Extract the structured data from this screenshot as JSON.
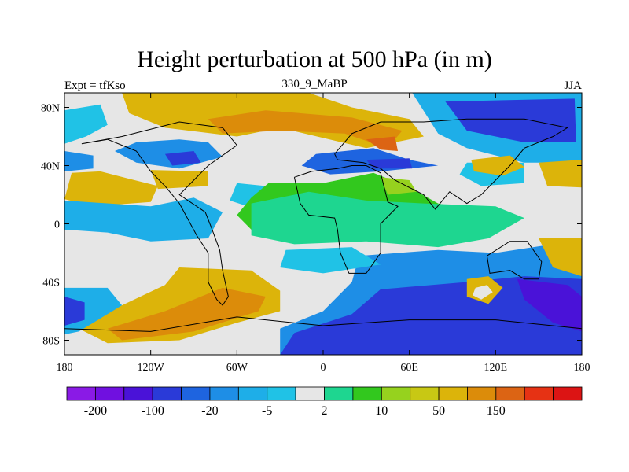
{
  "title": "Height perturbation at 500 hPa (in m)",
  "left_subtitle": "Expt = tfKso",
  "center_subtitle": "330_9_MaBP",
  "right_subtitle": "JJA",
  "lat_ticks": [
    {
      "value": 80,
      "label": "80N"
    },
    {
      "value": 40,
      "label": "40N"
    },
    {
      "value": 0,
      "label": "0"
    },
    {
      "value": -40,
      "label": "40S"
    },
    {
      "value": -80,
      "label": "80S"
    }
  ],
  "lon_ticks": [
    {
      "value": -180,
      "label": "180"
    },
    {
      "value": -120,
      "label": "120W"
    },
    {
      "value": -60,
      "label": "60W"
    },
    {
      "value": 0,
      "label": "0"
    },
    {
      "value": 60,
      "label": "60E"
    },
    {
      "value": 120,
      "label": "120E"
    },
    {
      "value": 180,
      "label": "180"
    }
  ],
  "colorbar": {
    "colors": [
      "#8a1ae6",
      "#7010e0",
      "#4a12d8",
      "#2a3ad8",
      "#1e64e0",
      "#1e8ee6",
      "#1eaee8",
      "#20c2e6",
      "#e6e6e6",
      "#1ed690",
      "#32c81e",
      "#96d21e",
      "#c8c814",
      "#dcb40a",
      "#dc8c0a",
      "#dc6414",
      "#e63214",
      "#dc1414"
    ],
    "labels": [
      "-200",
      "-100",
      "-20",
      "-5",
      "2",
      "10",
      "50",
      "150"
    ]
  },
  "map_data": {
    "lon_range": [
      -180,
      180
    ],
    "lat_range": [
      -90,
      90
    ],
    "regions": [
      {
        "color": "#e6e6e6",
        "points": [
          [
            -180,
            90
          ],
          [
            180,
            90
          ],
          [
            180,
            -90
          ],
          [
            -180,
            -90
          ]
        ]
      },
      {
        "color": "#20c2e6",
        "points": [
          [
            -180,
            78
          ],
          [
            -155,
            82
          ],
          [
            -150,
            68
          ],
          [
            -165,
            60
          ],
          [
            -180,
            55
          ]
        ]
      },
      {
        "color": "#dcb40a",
        "points": [
          [
            -140,
            90
          ],
          [
            -10,
            90
          ],
          [
            20,
            80
          ],
          [
            60,
            72
          ],
          [
            70,
            60
          ],
          [
            30,
            52
          ],
          [
            -30,
            66
          ],
          [
            -60,
            60
          ],
          [
            -110,
            66
          ],
          [
            -135,
            76
          ]
        ]
      },
      {
        "color": "#dc8c0a",
        "points": [
          [
            -80,
            72
          ],
          [
            -40,
            78
          ],
          [
            20,
            73
          ],
          [
            55,
            64
          ],
          [
            45,
            52
          ],
          [
            15,
            62
          ],
          [
            -30,
            64
          ],
          [
            -70,
            62
          ]
        ]
      },
      {
        "color": "#dc6414",
        "points": [
          [
            30,
            58
          ],
          [
            50,
            60
          ],
          [
            52,
            50
          ],
          [
            40,
            51
          ]
        ]
      },
      {
        "color": "#1e8ee6",
        "points": [
          [
            -130,
            56
          ],
          [
            -100,
            58
          ],
          [
            -80,
            56
          ],
          [
            -70,
            46
          ],
          [
            -100,
            38
          ],
          [
            -130,
            42
          ],
          [
            -145,
            50
          ]
        ]
      },
      {
        "color": "#2a3ad8",
        "points": [
          [
            -110,
            48
          ],
          [
            -90,
            50
          ],
          [
            -85,
            42
          ],
          [
            -105,
            40
          ]
        ]
      },
      {
        "color": "#1e8ee6",
        "points": [
          [
            -180,
            50
          ],
          [
            -160,
            47
          ],
          [
            -160,
            38
          ],
          [
            -180,
            36
          ]
        ]
      },
      {
        "color": "#1eaee8",
        "points": [
          [
            62,
            90
          ],
          [
            180,
            90
          ],
          [
            180,
            42
          ],
          [
            140,
            42
          ],
          [
            100,
            52
          ],
          [
            80,
            62
          ]
        ]
      },
      {
        "color": "#2a3ad8",
        "points": [
          [
            85,
            84
          ],
          [
            175,
            86
          ],
          [
            176,
            56
          ],
          [
            140,
            56
          ],
          [
            100,
            64
          ]
        ]
      },
      {
        "color": "#20c2e6",
        "points": [
          [
            100,
            42
          ],
          [
            140,
            42
          ],
          [
            140,
            28
          ],
          [
            110,
            26
          ],
          [
            95,
            34
          ]
        ]
      },
      {
        "color": "#dcb40a",
        "points": [
          [
            103,
            44
          ],
          [
            130,
            47
          ],
          [
            140,
            39
          ],
          [
            125,
            33
          ],
          [
            105,
            36
          ]
        ]
      },
      {
        "color": "#dcb40a",
        "points": [
          [
            150,
            42
          ],
          [
            180,
            44
          ],
          [
            180,
            25
          ],
          [
            156,
            26
          ]
        ]
      },
      {
        "color": "#dcb40a",
        "points": [
          [
            -175,
            35
          ],
          [
            -155,
            36
          ],
          [
            -135,
            31
          ],
          [
            -115,
            26
          ],
          [
            -120,
            15
          ],
          [
            -160,
            12
          ],
          [
            -180,
            17
          ]
        ]
      },
      {
        "color": "#dcb40a",
        "points": [
          [
            -120,
            37
          ],
          [
            -80,
            36
          ],
          [
            -80,
            26
          ],
          [
            -115,
            24
          ]
        ]
      },
      {
        "color": "#1eaee8",
        "points": [
          [
            -180,
            16
          ],
          [
            -120,
            12
          ],
          [
            -90,
            18
          ],
          [
            -70,
            8
          ],
          [
            -80,
            -10
          ],
          [
            -120,
            -12
          ],
          [
            -150,
            -6
          ],
          [
            -180,
            -4
          ]
        ]
      },
      {
        "color": "#20c2e6",
        "points": [
          [
            -60,
            28
          ],
          [
            -30,
            25
          ],
          [
            -20,
            12
          ],
          [
            -40,
            8
          ],
          [
            -65,
            16
          ]
        ]
      },
      {
        "color": "#32c81e",
        "points": [
          [
            -38,
            28
          ],
          [
            0,
            28
          ],
          [
            35,
            35
          ],
          [
            60,
            25
          ],
          [
            80,
            14
          ],
          [
            100,
            10
          ],
          [
            110,
            0
          ],
          [
            80,
            -8
          ],
          [
            50,
            -10
          ],
          [
            20,
            -2
          ],
          [
            -18,
            -6
          ],
          [
            -50,
            -4
          ],
          [
            -60,
            6
          ],
          [
            -50,
            18
          ]
        ]
      },
      {
        "color": "#1ed690",
        "points": [
          [
            -50,
            14
          ],
          [
            -10,
            22
          ],
          [
            30,
            16
          ],
          [
            70,
            14
          ],
          [
            120,
            12
          ],
          [
            140,
            4
          ],
          [
            115,
            -10
          ],
          [
            80,
            -16
          ],
          [
            30,
            -12
          ],
          [
            -20,
            -14
          ],
          [
            -50,
            -8
          ]
        ]
      },
      {
        "color": "#96d21e",
        "points": [
          [
            40,
            32
          ],
          [
            60,
            30
          ],
          [
            65,
            22
          ],
          [
            45,
            20
          ]
        ]
      },
      {
        "color": "#1e64e0",
        "points": [
          [
            -5,
            48
          ],
          [
            35,
            52
          ],
          [
            60,
            44
          ],
          [
            80,
            40
          ],
          [
            40,
            36
          ],
          [
            5,
            34
          ],
          [
            -15,
            40
          ]
        ]
      },
      {
        "color": "#2a3ad8",
        "points": [
          [
            30,
            44
          ],
          [
            60,
            45
          ],
          [
            62,
            38
          ],
          [
            35,
            38
          ]
        ]
      },
      {
        "color": "#1e8ee6",
        "points": [
          [
            25,
            -22
          ],
          [
            80,
            -18
          ],
          [
            120,
            -20
          ],
          [
            160,
            -14
          ],
          [
            180,
            -14
          ],
          [
            180,
            -90
          ],
          [
            -30,
            -90
          ],
          [
            -30,
            -72
          ],
          [
            0,
            -60
          ],
          [
            20,
            -40
          ]
        ]
      },
      {
        "color": "#2a3ad8",
        "points": [
          [
            40,
            -45
          ],
          [
            100,
            -40
          ],
          [
            140,
            -36
          ],
          [
            180,
            -38
          ],
          [
            180,
            -90
          ],
          [
            -30,
            -90
          ],
          [
            -20,
            -75
          ],
          [
            20,
            -62
          ]
        ]
      },
      {
        "color": "#4a12d8",
        "points": [
          [
            135,
            -38
          ],
          [
            170,
            -42
          ],
          [
            180,
            -50
          ],
          [
            180,
            -74
          ],
          [
            160,
            -68
          ],
          [
            140,
            -52
          ]
        ]
      },
      {
        "color": "#dcb40a",
        "points": [
          [
            100,
            -38
          ],
          [
            115,
            -36
          ],
          [
            125,
            -44
          ],
          [
            115,
            -55
          ],
          [
            100,
            -50
          ]
        ]
      },
      {
        "color": "#e6e6e6",
        "points": [
          [
            106,
            -44
          ],
          [
            114,
            -42
          ],
          [
            118,
            -47
          ],
          [
            110,
            -52
          ],
          [
            104,
            -49
          ]
        ]
      },
      {
        "color": "#dcb40a",
        "points": [
          [
            -100,
            -30
          ],
          [
            -50,
            -32
          ],
          [
            -30,
            -46
          ],
          [
            -30,
            -60
          ],
          [
            -60,
            -68
          ],
          [
            -100,
            -80
          ],
          [
            -150,
            -82
          ],
          [
            -170,
            -72
          ],
          [
            -140,
            -56
          ],
          [
            -110,
            -42
          ]
        ]
      },
      {
        "color": "#dc8c0a",
        "points": [
          [
            -70,
            -44
          ],
          [
            -40,
            -50
          ],
          [
            -45,
            -60
          ],
          [
            -90,
            -74
          ],
          [
            -140,
            -80
          ],
          [
            -150,
            -72
          ],
          [
            -110,
            -60
          ]
        ]
      },
      {
        "color": "#1eaee8",
        "points": [
          [
            -180,
            -44
          ],
          [
            -150,
            -44
          ],
          [
            -140,
            -56
          ],
          [
            -170,
            -74
          ],
          [
            -180,
            -76
          ]
        ]
      },
      {
        "color": "#2a3ad8",
        "points": [
          [
            -180,
            -50
          ],
          [
            -166,
            -54
          ],
          [
            -166,
            -66
          ],
          [
            -180,
            -70
          ]
        ]
      },
      {
        "color": "#20c2e6",
        "points": [
          [
            -26,
            -18
          ],
          [
            20,
            -16
          ],
          [
            40,
            -28
          ],
          [
            0,
            -34
          ],
          [
            -30,
            -30
          ]
        ]
      },
      {
        "color": "#dcb40a",
        "points": [
          [
            150,
            -10
          ],
          [
            180,
            -10
          ],
          [
            180,
            -36
          ],
          [
            160,
            -30
          ]
        ]
      }
    ],
    "coastlines": [
      [
        [
          -168,
          55
        ],
        [
          -140,
          60
        ],
        [
          -100,
          70
        ],
        [
          -70,
          66
        ],
        [
          -60,
          54
        ],
        [
          -80,
          40
        ],
        [
          -90,
          30
        ],
        [
          -100,
          20
        ],
        [
          -82,
          8
        ],
        [
          -78,
          -2
        ],
        [
          -72,
          -18
        ],
        [
          -70,
          -32
        ],
        [
          -66,
          -50
        ],
        [
          -70,
          -56
        ],
        [
          -74,
          -52
        ],
        [
          -80,
          -40
        ],
        [
          -80,
          -20
        ],
        [
          -88,
          -8
        ],
        [
          -100,
          14
        ],
        [
          -110,
          26
        ],
        [
          -120,
          36
        ],
        [
          -130,
          50
        ],
        [
          -150,
          58
        ],
        [
          -168,
          55
        ]
      ],
      [
        [
          -20,
          32
        ],
        [
          -8,
          36
        ],
        [
          10,
          38
        ],
        [
          20,
          40
        ],
        [
          30,
          40
        ],
        [
          40,
          35
        ],
        [
          45,
          15
        ],
        [
          52,
          12
        ],
        [
          40,
          0
        ],
        [
          40,
          -20
        ],
        [
          30,
          -34
        ],
        [
          18,
          -34
        ],
        [
          12,
          -20
        ],
        [
          10,
          -4
        ],
        [
          8,
          4
        ],
        [
          -10,
          6
        ],
        [
          -16,
          14
        ],
        [
          -20,
          32
        ]
      ],
      [
        [
          8,
          48
        ],
        [
          20,
          62
        ],
        [
          40,
          70
        ],
        [
          70,
          70
        ],
        [
          100,
          72
        ],
        [
          140,
          72
        ],
        [
          170,
          66
        ],
        [
          160,
          60
        ],
        [
          140,
          52
        ],
        [
          130,
          40
        ],
        [
          120,
          30
        ],
        [
          110,
          20
        ],
        [
          100,
          14
        ],
        [
          88,
          22
        ],
        [
          78,
          10
        ],
        [
          70,
          20
        ],
        [
          58,
          26
        ],
        [
          50,
          30
        ],
        [
          40,
          38
        ],
        [
          28,
          42
        ],
        [
          10,
          44
        ],
        [
          8,
          48
        ]
      ],
      [
        [
          114,
          -22
        ],
        [
          130,
          -12
        ],
        [
          142,
          -12
        ],
        [
          152,
          -26
        ],
        [
          150,
          -38
        ],
        [
          140,
          -38
        ],
        [
          130,
          -32
        ],
        [
          116,
          -34
        ],
        [
          114,
          -22
        ]
      ],
      [
        [
          -180,
          -72
        ],
        [
          -120,
          -74
        ],
        [
          -60,
          -64
        ],
        [
          0,
          -70
        ],
        [
          60,
          -66
        ],
        [
          120,
          -66
        ],
        [
          180,
          -72
        ]
      ]
    ]
  }
}
